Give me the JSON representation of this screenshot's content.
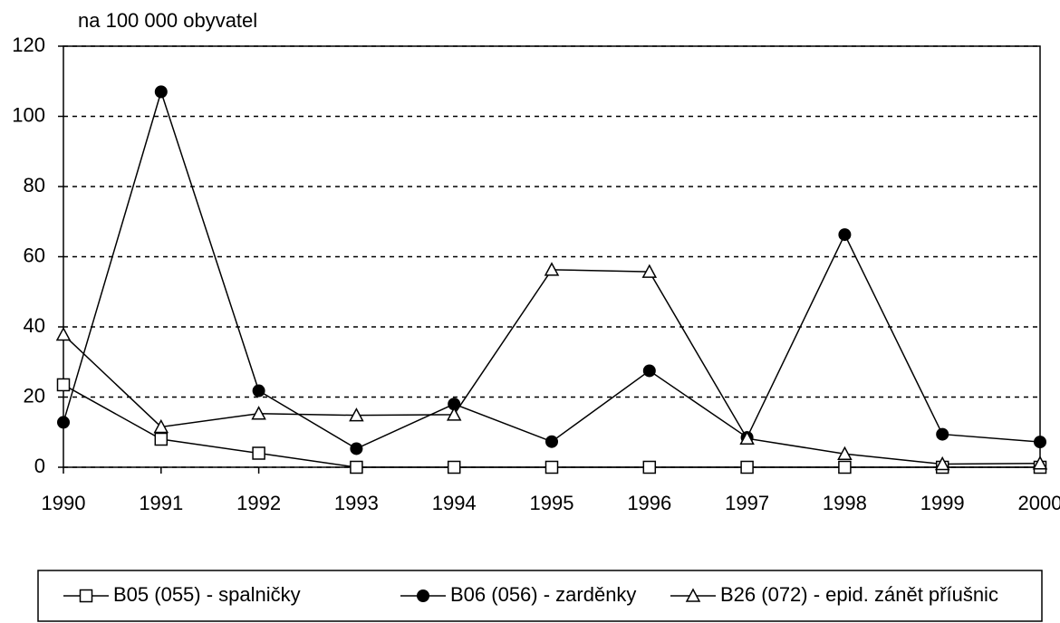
{
  "chart_data": {
    "type": "line",
    "y_label": "na 100 000 obyvatel",
    "x": [
      1990,
      1991,
      1992,
      1993,
      1994,
      1995,
      1996,
      1997,
      1998,
      1999,
      2000
    ],
    "xlim": [
      1990,
      2000
    ],
    "xticks": [
      1990,
      1991,
      1992,
      1993,
      1994,
      1995,
      1996,
      1997,
      1998,
      1999,
      2000
    ],
    "ylim": [
      0,
      120
    ],
    "yticks": [
      0,
      20,
      40,
      60,
      80,
      100,
      120
    ],
    "grid": true,
    "legend": "bottom",
    "series": [
      {
        "name": "B05 (055) - spalničky",
        "color": "#000000",
        "marker": "square",
        "values": [
          23.5,
          8,
          4,
          0,
          0,
          0,
          0,
          0,
          0,
          0,
          0
        ]
      },
      {
        "name": "B06 (056) - zarděnky",
        "color": "#000000",
        "marker": "circle",
        "values": [
          12.8,
          107,
          21.8,
          5.3,
          18,
          7.3,
          27.5,
          8.5,
          66.3,
          9.4,
          7.2
        ]
      },
      {
        "name": "B26 (072) - epid. zánět příušnic",
        "color": "#000000",
        "marker": "triangle",
        "values": [
          37.8,
          11.5,
          15.3,
          14.8,
          15,
          56.3,
          55.7,
          8.2,
          3.8,
          0.9,
          1.1
        ]
      }
    ]
  }
}
